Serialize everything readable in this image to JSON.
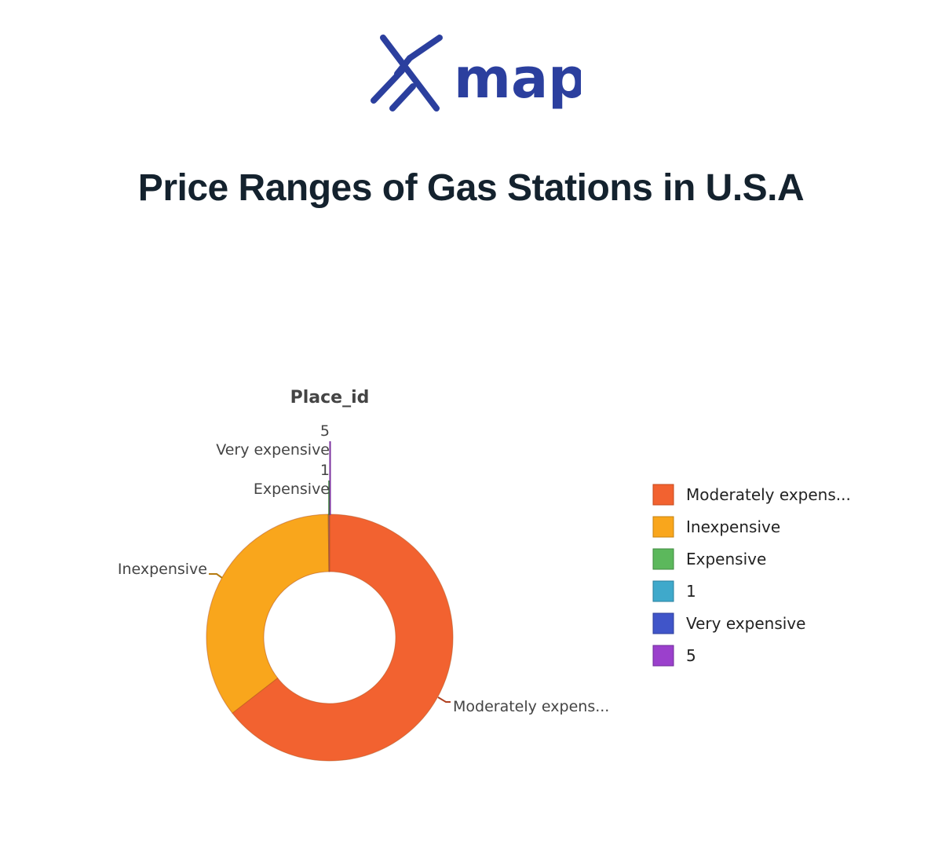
{
  "header": {
    "logo_text": "map",
    "title": "Price Ranges of Gas Stations in U.S.A"
  },
  "colors": {
    "logo": "#2b3f9e",
    "title": "#14222e"
  },
  "chart_data": {
    "type": "pie",
    "hole": true,
    "title": "Place_id",
    "legend_position": "right",
    "slices": [
      {
        "label": "Moderately expens...",
        "value": 64.5,
        "color": "#f26230"
      },
      {
        "label": "Inexpensive",
        "value": 35.3,
        "color": "#f9a61c"
      },
      {
        "label": "Expensive",
        "value": 0.05,
        "color": "#5cb85c"
      },
      {
        "label": "1",
        "value": 0.05,
        "color": "#3fa9cb"
      },
      {
        "label": "Very expensive",
        "value": 0.05,
        "color": "#4055c9"
      },
      {
        "label": "5",
        "value": 0.05,
        "color": "#9b40cc"
      }
    ]
  }
}
